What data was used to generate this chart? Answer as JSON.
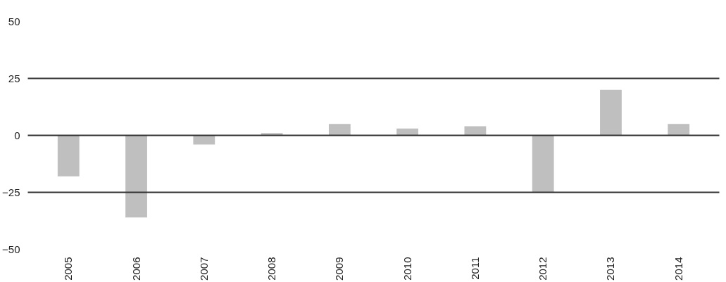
{
  "chart_data": {
    "type": "bar",
    "categories": [
      "2005",
      "2006",
      "2007",
      "2008",
      "2009",
      "2010",
      "2011",
      "2012",
      "2013",
      "2014"
    ],
    "values": [
      -18,
      -36,
      -4,
      1,
      5,
      3,
      4,
      -25,
      20,
      5
    ],
    "color": "#bfbfbf",
    "ylim": [
      -50,
      50
    ],
    "yticks": [
      {
        "value": -50,
        "label": "−50"
      },
      {
        "value": -25,
        "label": "−25"
      },
      0,
      25,
      50
    ],
    "grid": "y"
  }
}
